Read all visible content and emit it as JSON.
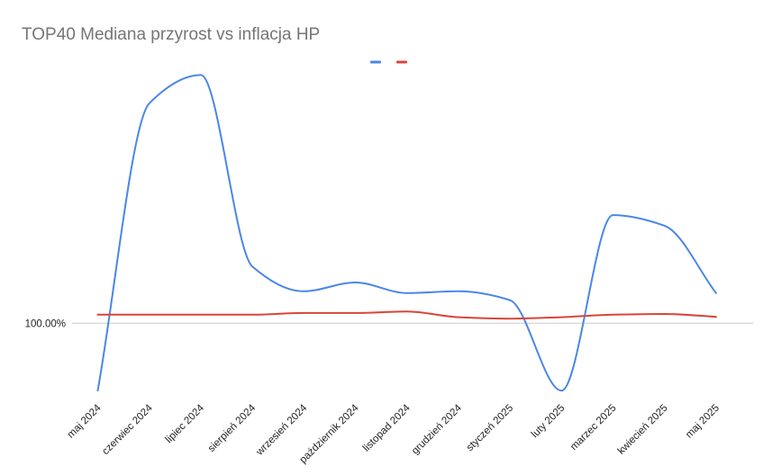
{
  "chart_data": {
    "type": "line",
    "title": "TOP40 Mediana przyrost vs inflacja HP",
    "xlabel": "",
    "ylabel": "",
    "categories": [
      "maj 2024",
      "czerwiec 2024",
      "lipiec 2024",
      "sierpień 2024",
      "wrzesień 2024",
      "październik 2024",
      "listopad 2024",
      "grudzień 2024",
      "styczeń 2025",
      "luty 2025",
      "marzec 2025",
      "kwiecień 2025",
      "maj 2025"
    ],
    "y_ticks": [
      {
        "value": 1.0,
        "label": "100.00%"
      }
    ],
    "ylim": [
      0.978,
      1.081
    ],
    "grid": "baseline only",
    "legend": "top-center",
    "series": [
      {
        "color": "#4a86e8",
        "values": [
          0.981,
          1.062,
          1.07,
          1.016,
          1.009,
          1.0115,
          1.0085,
          1.009,
          1.0065,
          0.981,
          1.0305,
          1.0275,
          1.0085
        ]
      },
      {
        "color": "#d9453a",
        "values": [
          1.0024,
          1.0024,
          1.0024,
          1.0024,
          1.0029,
          1.0029,
          1.0033,
          1.0017,
          1.0013,
          1.0017,
          1.0024,
          1.0026,
          1.0018
        ]
      }
    ]
  }
}
